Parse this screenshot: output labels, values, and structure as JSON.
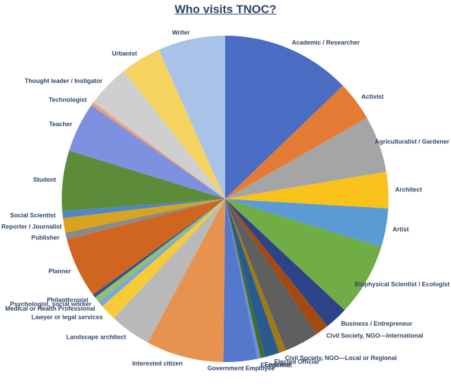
{
  "chart_data": {
    "type": "pie",
    "title": "Who visits TNOC?",
    "slices": [
      {
        "label": "Academic / Researcher",
        "value": 15.0,
        "color": "#4a6cc2"
      },
      {
        "label": "Activist",
        "value": 4.6,
        "color": "#e47b35"
      },
      {
        "label": "Agriculturalist / Gardener",
        "value": 6.6,
        "color": "#a5a5a5"
      },
      {
        "label": "Architect",
        "value": 4.2,
        "color": "#f9c21b"
      },
      {
        "label": "Artist",
        "value": 4.5,
        "color": "#5b9bd5"
      },
      {
        "label": "Biophysical Scientist / Ecologist",
        "value": 8.4,
        "color": "#70ad47"
      },
      {
        "label": "Business / Entrepreneur",
        "value": 2.7,
        "color": "#2d4387"
      },
      {
        "label": "Civil Society, NGO—International",
        "value": 1.5,
        "color": "#a44a10"
      },
      {
        "label": "",
        "value": 4.0,
        "color": "#5f5f5f"
      },
      {
        "label": "Civil Society, NGO—Local or Regional",
        "value": 0.8,
        "color": "#a07a10"
      },
      {
        "label": "Elected Official",
        "value": 1.7,
        "color": "#295a8e"
      },
      {
        "label": "Engineer",
        "value": 0.5,
        "color": "#446b2a"
      },
      {
        "label": "Economist",
        "value": 0.4,
        "color": "#6a8fd6"
      },
      {
        "label": "Government Employee",
        "value": 3.9,
        "color": "#5577cc"
      },
      {
        "label": "Interested citizen",
        "value": 9.0,
        "color": "#e8924f"
      },
      {
        "label": "Landscape architect",
        "value": 4.8,
        "color": "#b9b9b9"
      },
      {
        "label": "Lawyer or legal services",
        "value": 1.9,
        "color": "#f6cb36"
      },
      {
        "label": "Medical or Health Professional",
        "value": 0.6,
        "color": "#7ba6dc"
      },
      {
        "label": "Psychologist, social worker",
        "value": 0.7,
        "color": "#8ec070"
      },
      {
        "label": "Philanthropist",
        "value": 0.4,
        "color": "#33508f"
      },
      {
        "label": "Planner",
        "value": 7.0,
        "color": "#d0651f"
      },
      {
        "label": "Publisher",
        "value": 0.8,
        "color": "#8a8a8a"
      },
      {
        "label": "Reporter / Journalist",
        "value": 1.7,
        "color": "#d9a41d"
      },
      {
        "label": "Social Scientist",
        "value": 0.8,
        "color": "#4f86c6"
      },
      {
        "label": "Student",
        "value": 7.0,
        "color": "#5c8c3a"
      },
      {
        "label": "Teacher",
        "value": 5.8,
        "color": "#7d91e0"
      },
      {
        "label": "Technologist",
        "value": 0.4,
        "color": "#eaa07a"
      },
      {
        "label": "Thought leader / Instigator",
        "value": 5.0,
        "color": "#cfcfcf"
      },
      {
        "label": "Urbanist",
        "value": 4.7,
        "color": "#f6d35e"
      },
      {
        "label": "Writer",
        "value": 7.8,
        "color": "#a9c3e8"
      }
    ],
    "start_angle_deg": 0,
    "direction": "clockwise",
    "legend": "none",
    "labels_outside": true
  }
}
